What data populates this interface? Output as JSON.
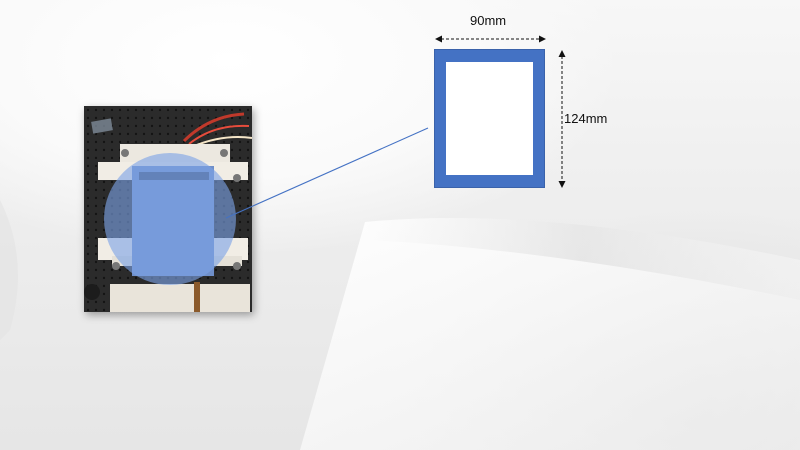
{
  "diagram": {
    "width_label": "90mm",
    "height_label": "124mm"
  },
  "colors": {
    "frame": "#4472c4",
    "frame_interior": "#ffffff",
    "leader_line": "#4472c4",
    "highlight_circle": "#5b86d6"
  },
  "icons": {
    "photo": "device-photo",
    "width_arrow": "double-headed-arrow-horizontal",
    "height_arrow": "double-headed-arrow-vertical"
  }
}
